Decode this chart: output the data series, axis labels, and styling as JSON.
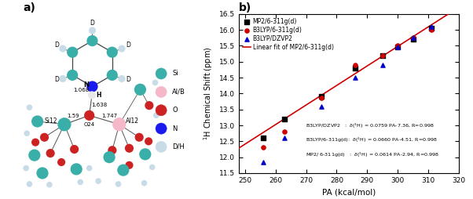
{
  "mp2_x": [
    256,
    263,
    275,
    286,
    295,
    300,
    305,
    311
  ],
  "mp2_y": [
    12.6,
    13.2,
    13.9,
    14.8,
    15.2,
    15.45,
    15.7,
    16.05
  ],
  "b3lyp_6311_x": [
    256,
    263,
    275,
    286,
    295,
    300,
    305,
    311
  ],
  "b3lyp_6311_y": [
    12.3,
    12.8,
    13.85,
    14.9,
    15.2,
    15.5,
    15.75,
    16.0
  ],
  "b3lyp_dzvp2_x": [
    256,
    263,
    275,
    286,
    295,
    300,
    305,
    311
  ],
  "b3lyp_dzvp2_y": [
    11.85,
    12.6,
    13.6,
    14.5,
    14.9,
    15.45,
    15.75,
    16.1
  ],
  "fit_slope": 0.0614,
  "fit_intercept": -2.94,
  "fit_x_start": 247,
  "fit_x_end": 320,
  "xlabel": "PA (kcal/mol)",
  "ylabel": "$^{1}$H Chemical Shift (ppm)",
  "title": "b)",
  "xlim": [
    248,
    320
  ],
  "ylim": [
    11.5,
    16.5
  ],
  "xticks": [
    250,
    260,
    270,
    280,
    290,
    300,
    310,
    320
  ],
  "yticks": [
    11.5,
    12.0,
    12.5,
    13.0,
    13.5,
    14.0,
    14.5,
    15.0,
    15.5,
    16.0,
    16.5
  ],
  "legend_labels": [
    "MP2/6-311g(d)",
    "B3LYP/6-311g(d)",
    "B3LYP/DZVP2",
    "Linear fit of MP2/6-311g(d)"
  ],
  "eq_text1": "B3LYP/DZVP2   :  $\\delta$($^{1}$H) = 0.0759 PA-7.36, R=0.998",
  "eq_text2": "B3LYP/6-311g(d):  $\\delta$($^{1}$H) = 0.0660 PA-4.51, R=0.998",
  "eq_text3": "MP2/ 6-311g(d)   :  $\\delta$($^{1}$H) = 0.0614 PA-2.94, R=0.998",
  "mp2_color": "#000000",
  "b3lyp_6311_color": "#cc0000",
  "b3lyp_dzvp2_color": "#0000cc",
  "fit_color": "#cc0000",
  "si_color": "#3aafa9",
  "al_color": "#f4b8c8",
  "o_color": "#cc2222",
  "n_color": "#1a1aee",
  "dh_color": "#c8dce8",
  "c_color": "#3aafa9",
  "background_color": "#ffffff"
}
